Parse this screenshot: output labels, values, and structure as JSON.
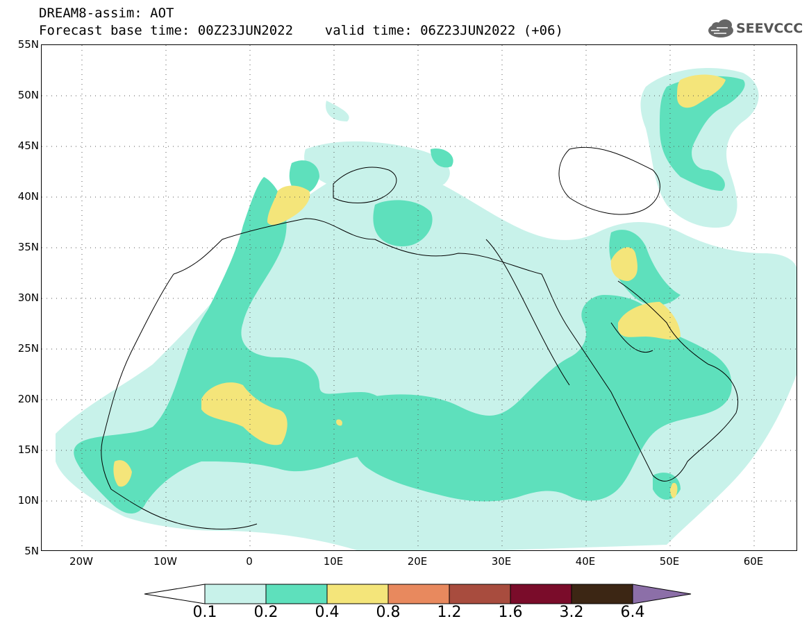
{
  "header": {
    "title_line1": "DREAM8-assim: AOT",
    "title_line2": "Forecast base time: 00Z23JUN2022    valid time: 06Z23JUN2022 (+06)",
    "logo_text": "SEEVCCC"
  },
  "map": {
    "lat_labels": [
      "55N",
      "50N",
      "45N",
      "40N",
      "35N",
      "30N",
      "25N",
      "20N",
      "15N",
      "10N",
      "5N"
    ],
    "lon_labels": [
      "20W",
      "10W",
      "0",
      "10E",
      "20E",
      "30E",
      "40E",
      "50E",
      "60E"
    ],
    "lat_range": [
      5,
      55
    ],
    "lon_range": [
      -25,
      65
    ],
    "grid": "dotted"
  },
  "colorbar": {
    "labels": [
      "0.1",
      "0.2",
      "0.4",
      "0.8",
      "1.2",
      "1.6",
      "3.2",
      "6.4"
    ],
    "colors": [
      "#ffffff",
      "#c8f2ea",
      "#5ee0bc",
      "#f4e57a",
      "#e8895e",
      "#a84c3e",
      "#7a0c2a",
      "#3c2614",
      "#8c6fa8"
    ]
  }
}
